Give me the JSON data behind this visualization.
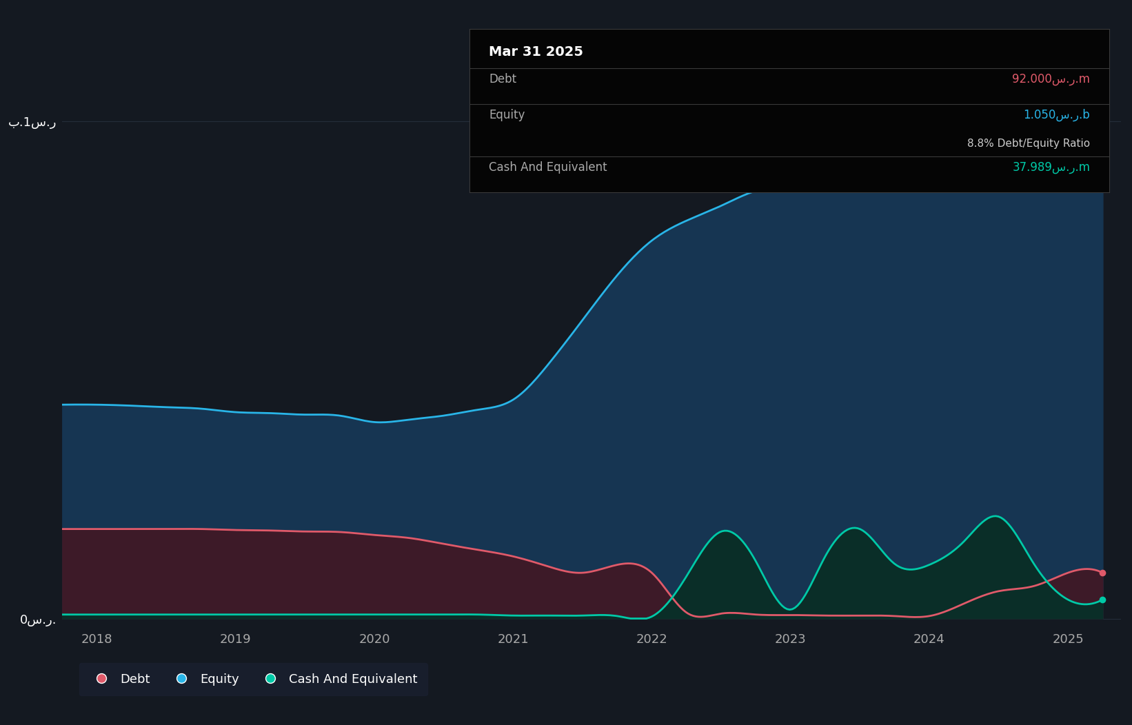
{
  "background_color": "#141921",
  "plot_bg_color": "#141921",
  "grid_color": "#252d3a",
  "equity_color": "#29b5e8",
  "equity_fill": "#163552",
  "debt_color": "#e05a6a",
  "debt_fill": "#3d1a28",
  "cash_color": "#00c9a7",
  "cash_fill": "#0a2e28",
  "tooltip_bg": "#050505",
  "title_text": "Mar 31 2025",
  "debt_label": "Debt",
  "equity_label": "Equity",
  "cash_label": "Cash And Equivalent",
  "debt_value": "92.000س.ر.m",
  "equity_value": "1.050س.ر.b",
  "ratio_text": "8.8% Debt/Equity Ratio",
  "cash_value": "37.989س.ر.m",
  "ytick_1b": "ب.1س.ر",
  "ytick_0": "0س.ر.",
  "debt_color_tooltip": "#e05a6a",
  "equity_color_tooltip": "#29b5e8",
  "cash_color_tooltip": "#00c9a7",
  "years_x": [
    2018,
    2019,
    2020,
    2021,
    2022,
    2023,
    2024,
    2025
  ],
  "equity_data_x": [
    2017.75,
    2018.0,
    2018.25,
    2018.5,
    2018.75,
    2019.0,
    2019.25,
    2019.5,
    2019.75,
    2020.0,
    2020.25,
    2020.5,
    2020.75,
    2021.0,
    2021.25,
    2021.5,
    2021.75,
    2022.0,
    2022.25,
    2022.5,
    2022.75,
    2023.0,
    2023.25,
    2023.5,
    2023.75,
    2024.0,
    2024.25,
    2024.5,
    2024.75,
    2025.0,
    2025.25
  ],
  "equity_data_y": [
    0.43,
    0.43,
    0.428,
    0.425,
    0.422,
    0.415,
    0.413,
    0.41,
    0.408,
    0.395,
    0.4,
    0.408,
    0.42,
    0.44,
    0.51,
    0.6,
    0.69,
    0.76,
    0.8,
    0.83,
    0.86,
    0.87,
    0.875,
    0.88,
    0.885,
    0.89,
    0.94,
    0.98,
    0.995,
    1.05,
    1.05
  ],
  "debt_data_x": [
    2017.75,
    2018.0,
    2018.25,
    2018.5,
    2018.75,
    2019.0,
    2019.25,
    2019.5,
    2019.75,
    2020.0,
    2020.25,
    2020.5,
    2020.75,
    2021.0,
    2021.25,
    2021.5,
    2021.75,
    2022.0,
    2022.25,
    2022.5,
    2022.75,
    2023.0,
    2023.25,
    2023.5,
    2023.75,
    2024.0,
    2024.25,
    2024.5,
    2024.75,
    2025.0,
    2025.25
  ],
  "debt_data_y": [
    0.18,
    0.18,
    0.18,
    0.18,
    0.18,
    0.178,
    0.177,
    0.175,
    0.174,
    0.168,
    0.162,
    0.15,
    0.138,
    0.125,
    0.105,
    0.092,
    0.108,
    0.092,
    0.012,
    0.01,
    0.008,
    0.007,
    0.006,
    0.006,
    0.005,
    0.005,
    0.03,
    0.055,
    0.065,
    0.092,
    0.092
  ],
  "cash_data_x": [
    2017.75,
    2018.0,
    2018.25,
    2018.5,
    2018.75,
    2019.0,
    2019.25,
    2019.5,
    2019.75,
    2020.0,
    2020.25,
    2020.5,
    2020.75,
    2021.0,
    2021.25,
    2021.5,
    2021.75,
    2022.0,
    2022.25,
    2022.5,
    2022.75,
    2023.0,
    2023.25,
    2023.5,
    2023.75,
    2024.0,
    2024.25,
    2024.5,
    2024.75,
    2025.0,
    2025.25
  ],
  "cash_data_y": [
    0.008,
    0.008,
    0.008,
    0.008,
    0.008,
    0.008,
    0.008,
    0.008,
    0.008,
    0.008,
    0.008,
    0.008,
    0.008,
    0.006,
    0.006,
    0.006,
    0.005,
    0.004,
    0.085,
    0.175,
    0.115,
    0.018,
    0.125,
    0.18,
    0.11,
    0.108,
    0.155,
    0.205,
    0.112,
    0.038,
    0.038
  ],
  "ylim": [
    -0.01,
    1.2
  ],
  "xlim": [
    2017.75,
    2025.38
  ]
}
